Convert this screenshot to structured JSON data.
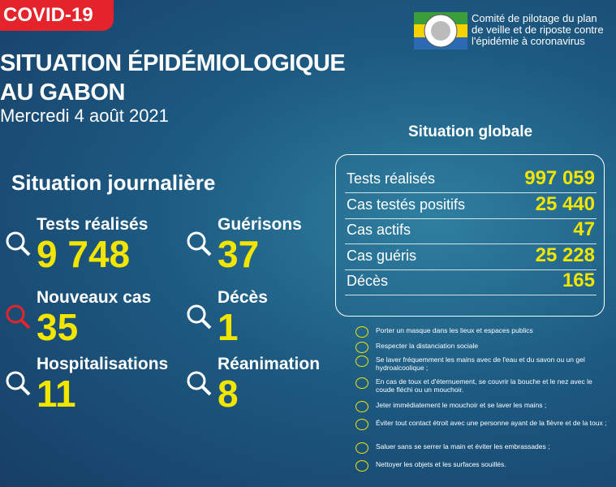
{
  "badge": "COVID-19",
  "header": {
    "title_line1": "SITUATION ÉPIDÉMIOLOGIQUE",
    "title_line2": "AU GABON",
    "date": "Mercredi 4 août 2021"
  },
  "committee": [
    "Comité de pilotage du plan",
    "de veille et de riposte contre",
    "l'épidémie à coronavirus"
  ],
  "daily": {
    "title": "Situation journalière",
    "items": [
      {
        "label": "Tests réalisés",
        "value": "9 748"
      },
      {
        "label": "Guérisons",
        "value": "37"
      },
      {
        "label": "Nouveaux cas",
        "value": "35"
      },
      {
        "label": "Décès",
        "value": "1"
      },
      {
        "label": "Hospitalisations",
        "value": "11"
      },
      {
        "label": "Réanimation",
        "value": "8"
      }
    ]
  },
  "global": {
    "title": "Situation globale",
    "rows": [
      {
        "label": "Tests réalisés",
        "value": "997 059"
      },
      {
        "label": "Cas testés positifs",
        "value": "25 440"
      },
      {
        "label": "Cas actifs",
        "value": "47"
      },
      {
        "label": "Cas guéris",
        "value": "25 228"
      },
      {
        "label": "Décès",
        "value": "165"
      }
    ]
  },
  "advice": [
    "Porter un masque dans les lieux et espaces publics",
    "Respecter la distanciation sociale",
    "Se laver fréquemment les mains avec de l'eau et du savon ou un gel hydroalcoolique ;",
    "En cas de toux et d'éternuement, se couvrir la bouche et le nez avec le coude fléchi ou un mouchoir.",
    "Jeter immédiatement le mouchoir et se laver les mains ;",
    "Éviter tout contact étroit avec une personne ayant de la fièvre et de la toux ;",
    "Saluer sans se serrer la main et éviter les embrassades ;",
    "Nettoyer les objets et les surfaces souillés."
  ]
}
